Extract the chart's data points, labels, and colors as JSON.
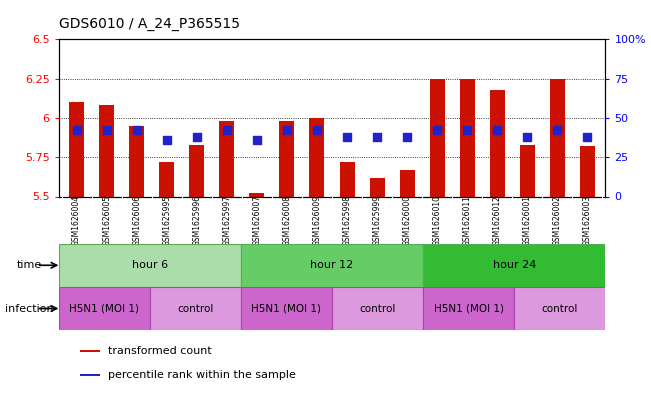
{
  "title": "GDS6010 / A_24_P365515",
  "samples": [
    "GSM1626004",
    "GSM1626005",
    "GSM1626006",
    "GSM1625995",
    "GSM1625996",
    "GSM1625997",
    "GSM1626007",
    "GSM1626008",
    "GSM1626009",
    "GSM1625998",
    "GSM1625999",
    "GSM1626000",
    "GSM1626010",
    "GSM1626011",
    "GSM1626012",
    "GSM1626001",
    "GSM1626002",
    "GSM1626003"
  ],
  "transformed_counts": [
    6.1,
    6.08,
    5.95,
    5.72,
    5.83,
    5.98,
    5.52,
    5.98,
    6.0,
    5.72,
    5.62,
    5.67,
    6.25,
    6.25,
    6.18,
    5.83,
    6.25,
    5.82
  ],
  "percentile_ranks": [
    42,
    42,
    42,
    36,
    38,
    42,
    36,
    42,
    42,
    38,
    38,
    38,
    42,
    42,
    42,
    38,
    42,
    38
  ],
  "bar_color": "#cc1100",
  "dot_color": "#2222cc",
  "ylim_left": [
    5.5,
    6.5
  ],
  "ylim_right": [
    0,
    100
  ],
  "yticks_left": [
    5.5,
    5.75,
    6.0,
    6.25,
    6.5
  ],
  "yticks_right": [
    0,
    25,
    50,
    75,
    100
  ],
  "ytick_labels_left": [
    "5.5",
    "5.75",
    "6",
    "6.25",
    "6.5"
  ],
  "ytick_labels_right": [
    "0",
    "25",
    "50",
    "75",
    "100%"
  ],
  "baseline": 5.5,
  "groups": [
    {
      "label": "hour 6",
      "start": 0,
      "end": 6,
      "color": "#aaddaa"
    },
    {
      "label": "hour 12",
      "start": 6,
      "end": 12,
      "color": "#66cc66"
    },
    {
      "label": "hour 24",
      "start": 12,
      "end": 18,
      "color": "#33bb33"
    }
  ],
  "infections": [
    {
      "label": "H5N1 (MOI 1)",
      "start": 0,
      "end": 3,
      "color": "#cc66cc"
    },
    {
      "label": "control",
      "start": 3,
      "end": 6,
      "color": "#dd99dd"
    },
    {
      "label": "H5N1 (MOI 1)",
      "start": 6,
      "end": 9,
      "color": "#cc66cc"
    },
    {
      "label": "control",
      "start": 9,
      "end": 12,
      "color": "#dd99dd"
    },
    {
      "label": "H5N1 (MOI 1)",
      "start": 12,
      "end": 15,
      "color": "#cc66cc"
    },
    {
      "label": "control",
      "start": 15,
      "end": 18,
      "color": "#dd99dd"
    }
  ],
  "time_label": "time",
  "infection_label": "infection",
  "legend_items": [
    {
      "color": "#cc1100",
      "label": "transformed count"
    },
    {
      "color": "#2222cc",
      "label": "percentile rank within the sample"
    }
  ],
  "bar_width": 0.5,
  "dot_size": 35
}
